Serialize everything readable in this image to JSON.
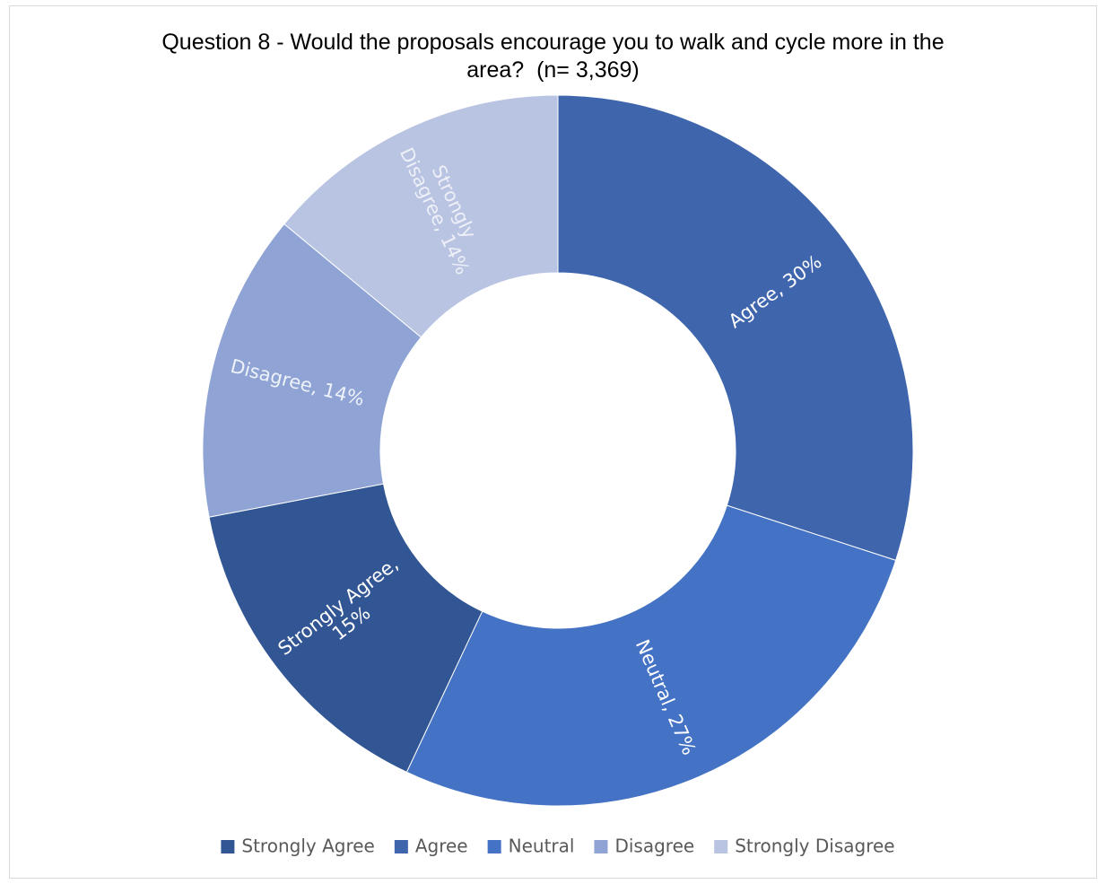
{
  "chart_data": {
    "type": "pie",
    "variant": "donut",
    "title_lines": [
      "Question 8 - Would the proposals encourage you to walk and cycle more in the",
      "area?  (n= 3,369)"
    ],
    "title": "Question 8 - Would the proposals encourage you to walk and cycle more in the area?  (n= 3,369)",
    "legend_position": "bottom",
    "slices": [
      {
        "category": "Agree",
        "value": 30,
        "label": "Agree, 30%",
        "color": "#3f65ad",
        "label_color": "#ffffff"
      },
      {
        "category": "Neutral",
        "value": 27,
        "label": "Neutral, 27%",
        "color": "#4472c4",
        "label_color": "#ffffff"
      },
      {
        "category": "Strongly Agree",
        "value": 15,
        "label_lines": [
          "Strongly Agree,",
          "15%"
        ],
        "label": "Strongly Agree, 15%",
        "color": "#325593",
        "label_color": "#ffffff"
      },
      {
        "category": "Disagree",
        "value": 14,
        "label": "Disagree, 14%",
        "color": "#8fa4d4",
        "label_color": "#eef2fa"
      },
      {
        "category": "Strongly Disagree",
        "value": 14,
        "label_lines": [
          "Strongly",
          "Disagree, 14%"
        ],
        "label": "Strongly Disagree, 14%",
        "color": "#b9c3e2",
        "label_color": "#eef0f8"
      }
    ],
    "legend": [
      {
        "label": "Strongly Agree",
        "color": "#325593"
      },
      {
        "label": "Agree",
        "color": "#3f65ad"
      },
      {
        "label": "Neutral",
        "color": "#4472c4"
      },
      {
        "label": "Disagree",
        "color": "#8fa4d4"
      },
      {
        "label": "Strongly Disagree",
        "color": "#b9c3e2"
      }
    ]
  }
}
